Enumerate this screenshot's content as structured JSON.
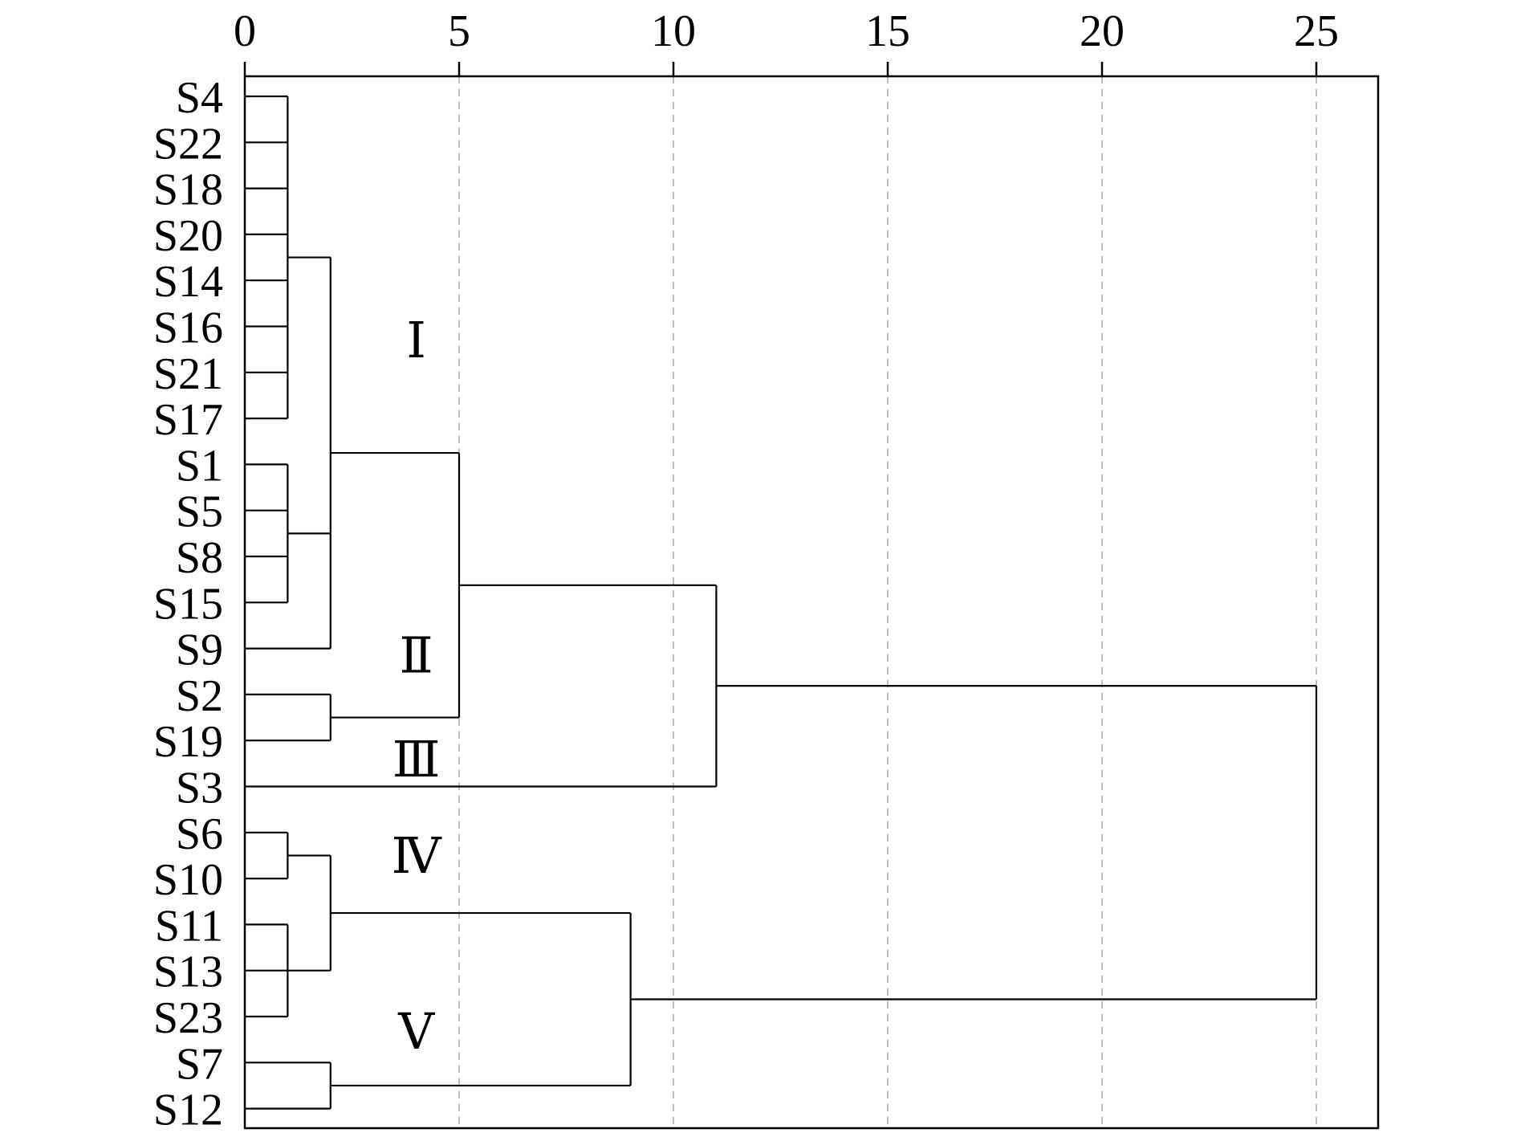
{
  "chart_data": {
    "type": "dendrogram",
    "x_ticks": [
      "0",
      "5",
      "10",
      "15",
      "20",
      "25"
    ],
    "x_tick_values": [
      0,
      5,
      10,
      15,
      20,
      25
    ],
    "xlim": [
      0,
      26.3
    ],
    "grid": "vertical dashed",
    "leaves": [
      "S4",
      "S22",
      "S18",
      "S20",
      "S14",
      "S16",
      "S21",
      "S17",
      "S1",
      "S5",
      "S8",
      "S15",
      "S9",
      "S2",
      "S19",
      "S3",
      "S6",
      "S10",
      "S11",
      "S13",
      "S23",
      "S7",
      "S12"
    ],
    "merges": [
      {
        "cluster": [
          "S4",
          "S22",
          "S18",
          "S20",
          "S14",
          "S16",
          "S21",
          "S17"
        ],
        "height": 1
      },
      {
        "cluster": [
          "S1",
          "S5",
          "S8",
          "S15"
        ],
        "height": 1
      },
      {
        "cluster": [
          "S4",
          "S22",
          "S18",
          "S20",
          "S14",
          "S16",
          "S21",
          "S17",
          "S1",
          "S5",
          "S8",
          "S15",
          "S9"
        ],
        "height": 2
      },
      {
        "cluster": [
          "S2",
          "S19"
        ],
        "height": 2
      },
      {
        "cluster": [
          "S4",
          "S22",
          "S18",
          "S20",
          "S14",
          "S16",
          "S21",
          "S17",
          "S1",
          "S5",
          "S8",
          "S15",
          "S9",
          "S2",
          "S19"
        ],
        "height": 5
      },
      {
        "cluster": [
          "S4",
          "S22",
          "S18",
          "S20",
          "S14",
          "S16",
          "S21",
          "S17",
          "S1",
          "S5",
          "S8",
          "S15",
          "S9",
          "S2",
          "S19",
          "S3"
        ],
        "height": 11
      },
      {
        "cluster": [
          "S6",
          "S10"
        ],
        "height": 1
      },
      {
        "cluster": [
          "S11",
          "S13",
          "S23"
        ],
        "height": 1
      },
      {
        "cluster": [
          "S6",
          "S10",
          "S11",
          "S13",
          "S23"
        ],
        "height": 2
      },
      {
        "cluster": [
          "S7",
          "S12"
        ],
        "height": 2
      },
      {
        "cluster": [
          "S6",
          "S10",
          "S11",
          "S13",
          "S23",
          "S7",
          "S12"
        ],
        "height": 9
      },
      {
        "cluster": [
          "all"
        ],
        "height": 25
      }
    ],
    "cluster_labels": [
      {
        "text": "Ⅰ",
        "x": 4,
        "near_leaf": "S21"
      },
      {
        "text": "Ⅱ",
        "x": 4,
        "near_leaf": "S9"
      },
      {
        "text": "Ⅲ",
        "x": 4,
        "near_leaf": "S19"
      },
      {
        "text": "Ⅳ",
        "x": 4,
        "near_leaf": "S6"
      },
      {
        "text": "Ⅴ",
        "x": 4,
        "near_leaf": "S23"
      }
    ]
  }
}
